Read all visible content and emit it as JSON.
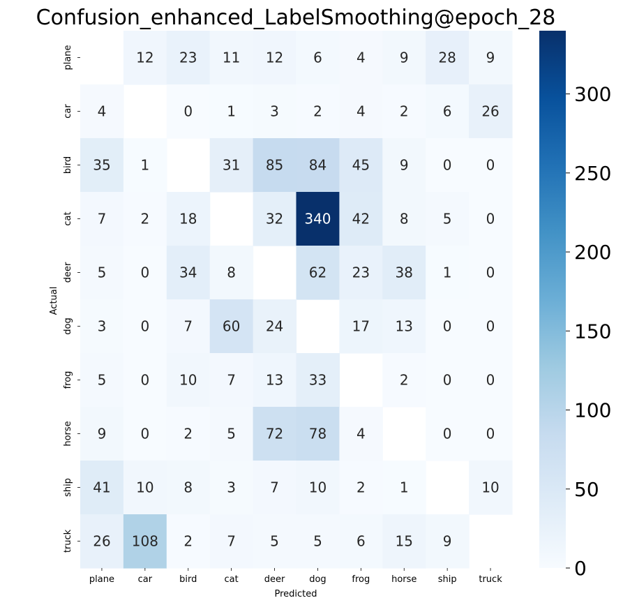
{
  "chart_data": {
    "type": "heatmap",
    "title": "Confusion_enhanced_LabelSmoothing@epoch_28",
    "xlabel": "Predicted",
    "ylabel": "Actual",
    "x_categories": [
      "plane",
      "car",
      "bird",
      "cat",
      "deer",
      "dog",
      "frog",
      "horse",
      "ship",
      "truck"
    ],
    "y_categories": [
      "plane",
      "car",
      "bird",
      "cat",
      "deer",
      "dog",
      "frog",
      "horse",
      "ship",
      "truck"
    ],
    "values": [
      [
        null,
        12,
        23,
        11,
        12,
        6,
        4,
        9,
        28,
        9
      ],
      [
        4,
        null,
        0,
        1,
        3,
        2,
        4,
        2,
        6,
        26
      ],
      [
        35,
        1,
        null,
        31,
        85,
        84,
        45,
        9,
        0,
        0
      ],
      [
        7,
        2,
        18,
        null,
        32,
        340,
        42,
        8,
        5,
        0
      ],
      [
        5,
        0,
        34,
        8,
        null,
        62,
        23,
        38,
        1,
        0
      ],
      [
        3,
        0,
        7,
        60,
        24,
        null,
        17,
        13,
        0,
        0
      ],
      [
        5,
        0,
        10,
        7,
        13,
        33,
        null,
        2,
        0,
        0
      ],
      [
        9,
        0,
        2,
        5,
        72,
        78,
        4,
        null,
        0,
        0
      ],
      [
        41,
        10,
        8,
        3,
        7,
        10,
        2,
        1,
        null,
        10
      ],
      [
        26,
        108,
        2,
        7,
        5,
        5,
        6,
        15,
        9,
        null
      ]
    ],
    "colormap": "Blues",
    "color_range": [
      0,
      340
    ],
    "colorbar_ticks": [
      0,
      50,
      100,
      150,
      200,
      250,
      300
    ],
    "diagonal_masked": true,
    "grid": false
  }
}
